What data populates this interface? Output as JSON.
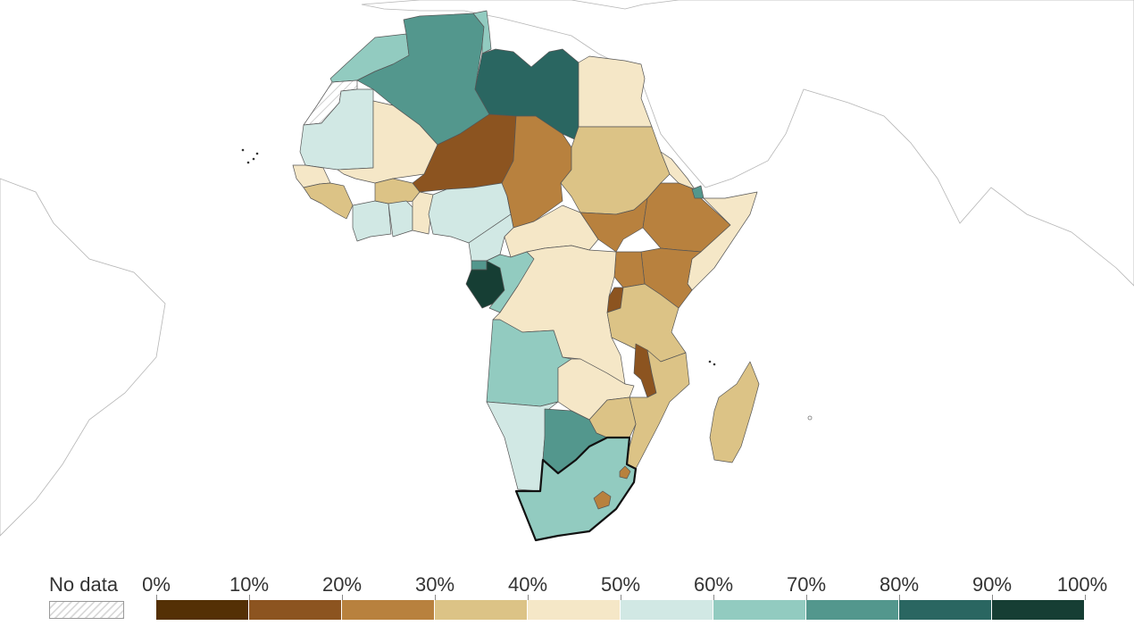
{
  "legend": {
    "no_data_label": "No data",
    "ticks": [
      "0%",
      "10%",
      "20%",
      "30%",
      "40%",
      "50%",
      "60%",
      "70%",
      "80%",
      "90%",
      "100%"
    ],
    "bins": [
      {
        "range": "0–10%",
        "color": "#543005"
      },
      {
        "range": "10–20%",
        "color": "#8c5420"
      },
      {
        "range": "20–30%",
        "color": "#b8813e"
      },
      {
        "range": "30–40%",
        "color": "#dcc386"
      },
      {
        "range": "40–50%",
        "color": "#f5e7c7"
      },
      {
        "range": "50–60%",
        "color": "#d1e8e4"
      },
      {
        "range": "60–70%",
        "color": "#92cbc0"
      },
      {
        "range": "70–80%",
        "color": "#53978d"
      },
      {
        "range": "80–90%",
        "color": "#2a6661"
      },
      {
        "range": "90–100%",
        "color": "#163e34"
      }
    ],
    "no_data_pattern": "diagonal-hatch"
  },
  "map": {
    "region": "Africa",
    "selected_country": "South Africa",
    "countries": [
      {
        "name": "Morocco",
        "bin": 6
      },
      {
        "name": "Western Sahara",
        "bin": null
      },
      {
        "name": "Algeria",
        "bin": 7
      },
      {
        "name": "Tunisia",
        "bin": 6
      },
      {
        "name": "Libya",
        "bin": 8
      },
      {
        "name": "Egypt",
        "bin": 4
      },
      {
        "name": "Mauritania",
        "bin": 5
      },
      {
        "name": "Mali",
        "bin": 4
      },
      {
        "name": "Niger",
        "bin": 1
      },
      {
        "name": "Chad",
        "bin": 2
      },
      {
        "name": "Sudan",
        "bin": 3
      },
      {
        "name": "Senegal",
        "bin": 4
      },
      {
        "name": "Guinea",
        "bin": 3
      },
      {
        "name": "Burkina Faso",
        "bin": 3
      },
      {
        "name": "Cote d'Ivoire",
        "bin": 5
      },
      {
        "name": "Ghana",
        "bin": 5
      },
      {
        "name": "Nigeria",
        "bin": 5
      },
      {
        "name": "Cameroon",
        "bin": 5
      },
      {
        "name": "Central African Republic",
        "bin": 4
      },
      {
        "name": "South Sudan",
        "bin": 2
      },
      {
        "name": "Ethiopia",
        "bin": 2
      },
      {
        "name": "Eritrea",
        "bin": 4
      },
      {
        "name": "Djibouti",
        "bin": 7
      },
      {
        "name": "Somalia",
        "bin": 4
      },
      {
        "name": "Kenya",
        "bin": 2
      },
      {
        "name": "Uganda",
        "bin": 2
      },
      {
        "name": "Rwanda",
        "bin": 1
      },
      {
        "name": "Gabon",
        "bin": 9
      },
      {
        "name": "Equatorial Guinea",
        "bin": 7
      },
      {
        "name": "Congo",
        "bin": 6
      },
      {
        "name": "Democratic Republic of Congo",
        "bin": 4
      },
      {
        "name": "Tanzania",
        "bin": 3
      },
      {
        "name": "Angola",
        "bin": 6
      },
      {
        "name": "Zambia",
        "bin": 4
      },
      {
        "name": "Malawi",
        "bin": 1
      },
      {
        "name": "Mozambique",
        "bin": 3
      },
      {
        "name": "Zimbabwe",
        "bin": 3
      },
      {
        "name": "Namibia",
        "bin": 5
      },
      {
        "name": "Botswana",
        "bin": 7
      },
      {
        "name": "South Africa",
        "bin": 6
      },
      {
        "name": "Lesotho",
        "bin": 2
      },
      {
        "name": "Eswatini",
        "bin": 2
      },
      {
        "name": "Madagascar",
        "bin": 3
      }
    ]
  }
}
